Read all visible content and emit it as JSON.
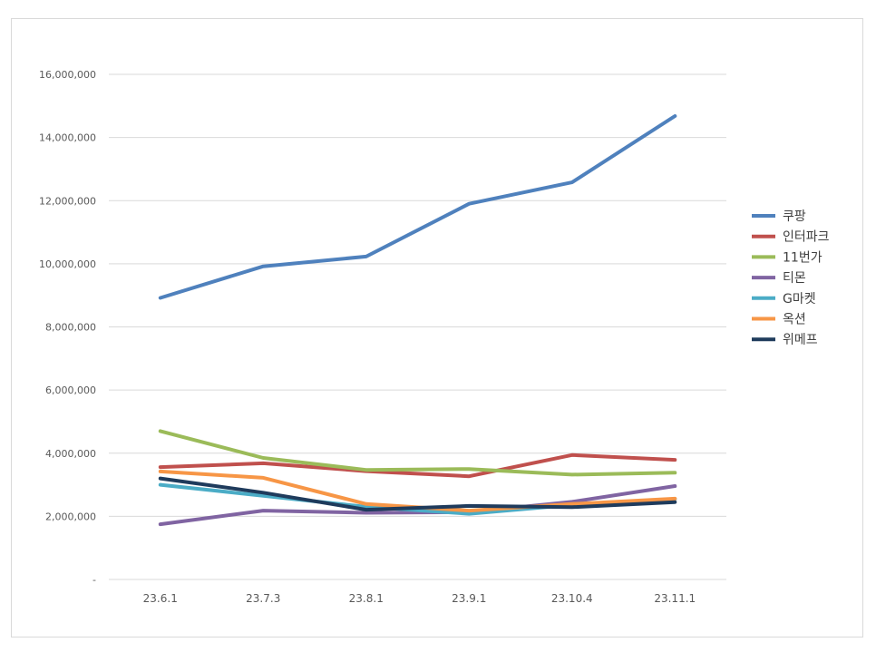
{
  "chart_data": {
    "type": "line",
    "title": "",
    "xlabel": "",
    "ylabel": "",
    "categories": [
      "23.6.1",
      "23.7.3",
      "23.8.1",
      "23.9.1",
      "23.10.4",
      "23.11.1"
    ],
    "ylim": [
      0,
      16000000
    ],
    "yticks": [
      0,
      2000000,
      4000000,
      6000000,
      8000000,
      10000000,
      12000000,
      14000000,
      16000000
    ],
    "ytick_labels": [
      "-",
      "2,000,000",
      "4,000,000",
      "6,000,000",
      "8,000,000",
      "10,000,000",
      "12,000,000",
      "14,000,000",
      "16,000,000"
    ],
    "grid": true,
    "legend_position": "right",
    "series": [
      {
        "name": "쿠팡",
        "color": "#4f81bd",
        "values": [
          8920000,
          9920000,
          10230000,
          11900000,
          12580000,
          14680000
        ]
      },
      {
        "name": "인터파크",
        "color": "#c0504d",
        "values": [
          3560000,
          3680000,
          3430000,
          3270000,
          3940000,
          3790000
        ]
      },
      {
        "name": "11번가",
        "color": "#9bbb59",
        "values": [
          4700000,
          3850000,
          3470000,
          3500000,
          3320000,
          3380000
        ]
      },
      {
        "name": "티몬",
        "color": "#8064a2",
        "values": [
          1750000,
          2180000,
          2110000,
          2130000,
          2460000,
          2960000
        ]
      },
      {
        "name": "G마켓",
        "color": "#4bacc6",
        "values": [
          3000000,
          2650000,
          2300000,
          2080000,
          2360000,
          2550000
        ]
      },
      {
        "name": "옥션",
        "color": "#f79646",
        "values": [
          3420000,
          3220000,
          2390000,
          2180000,
          2390000,
          2560000
        ]
      },
      {
        "name": "위메프",
        "color": "#1f3b5c",
        "values": [
          3200000,
          2750000,
          2210000,
          2330000,
          2290000,
          2450000
        ]
      }
    ]
  }
}
